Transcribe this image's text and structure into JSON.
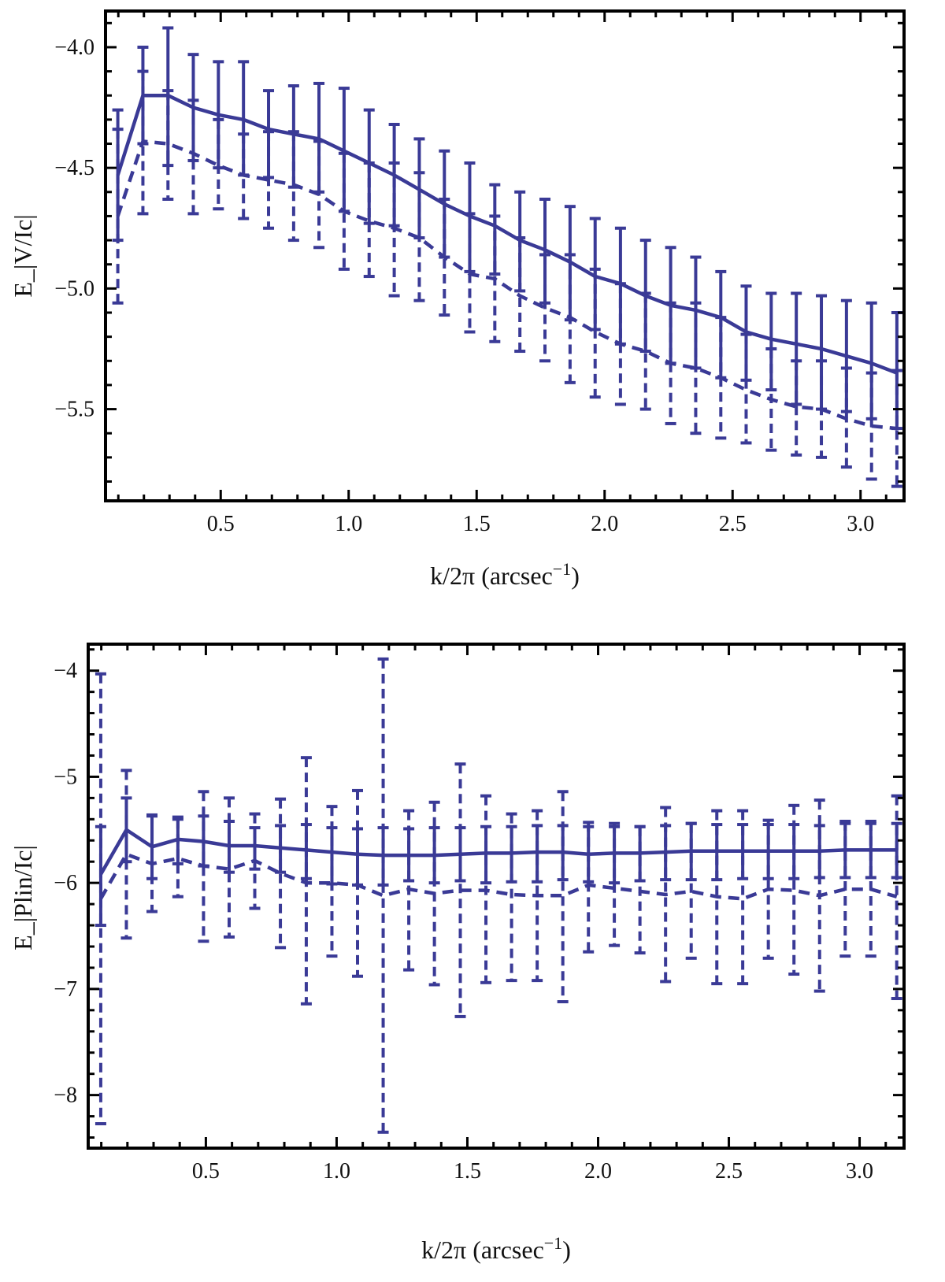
{
  "colors": {
    "series": "#3a3a96",
    "frame": "#000000",
    "background": "#ffffff"
  },
  "chart_data": [
    {
      "type": "line",
      "error_bars": true,
      "grid": false,
      "title": "",
      "xlabel": "k/2π (arcsec",
      "xlabel_sup": "−1",
      "xlabel_close": ")",
      "ylabel": "E_|V/Ic|",
      "xlim": [
        0.05,
        3.17
      ],
      "ylim": [
        -5.88,
        -3.85
      ],
      "x_ticks": [
        0.5,
        1.0,
        1.5,
        2.0,
        2.5,
        3.0
      ],
      "x_tick_labels": [
        "0.5",
        "1.0",
        "1.5",
        "2.0",
        "2.5",
        "3.0"
      ],
      "y_ticks": [
        -4.0,
        -4.5,
        -5.0,
        -5.5
      ],
      "y_tick_labels": [
        "−4.0",
        "−4.5",
        "−5.0",
        "−5.5"
      ],
      "x": [
        0.098,
        0.196,
        0.294,
        0.393,
        0.491,
        0.589,
        0.687,
        0.785,
        0.884,
        0.982,
        1.08,
        1.178,
        1.276,
        1.374,
        1.473,
        1.571,
        1.669,
        1.767,
        1.865,
        1.963,
        2.062,
        2.16,
        2.258,
        2.356,
        2.454,
        2.553,
        2.651,
        2.749,
        2.847,
        2.945,
        3.043,
        3.142
      ],
      "series": [
        {
          "style": "solid",
          "values": [
            -4.53,
            -4.2,
            -4.2,
            -4.25,
            -4.28,
            -4.3,
            -4.34,
            -4.36,
            -4.38,
            -4.43,
            -4.48,
            -4.53,
            -4.59,
            -4.65,
            -4.7,
            -4.74,
            -4.8,
            -4.84,
            -4.89,
            -4.95,
            -4.98,
            -5.03,
            -5.07,
            -5.09,
            -5.12,
            -5.18,
            -5.21,
            -5.23,
            -5.25,
            -5.28,
            -5.31,
            -5.35
          ],
          "err_low": [
            -4.8,
            -4.4,
            -4.49,
            -4.47,
            -4.5,
            -4.53,
            -4.54,
            -4.58,
            -4.6,
            -4.68,
            -4.73,
            -4.74,
            -4.79,
            -4.87,
            -4.93,
            -4.94,
            -5.01,
            -5.06,
            -5.13,
            -5.17,
            -5.23,
            -5.26,
            -5.31,
            -5.33,
            -5.37,
            -5.38,
            -5.42,
            -5.48,
            -5.5,
            -5.51,
            -5.54,
            -5.58
          ],
          "err_high": [
            -4.26,
            -4.0,
            -3.92,
            -4.03,
            -4.06,
            -4.06,
            -4.18,
            -4.16,
            -4.15,
            -4.17,
            -4.26,
            -4.32,
            -4.38,
            -4.43,
            -4.48,
            -4.57,
            -4.6,
            -4.63,
            -4.66,
            -4.71,
            -4.75,
            -4.8,
            -4.83,
            -4.87,
            -4.93,
            -4.99,
            -5.02,
            -5.02,
            -5.03,
            -5.05,
            -5.06,
            -5.1
          ]
        },
        {
          "style": "dashed",
          "values": [
            -4.7,
            -4.39,
            -4.4,
            -4.44,
            -4.49,
            -4.53,
            -4.55,
            -4.57,
            -4.61,
            -4.68,
            -4.72,
            -4.75,
            -4.79,
            -4.87,
            -4.94,
            -4.96,
            -5.03,
            -5.08,
            -5.12,
            -5.18,
            -5.23,
            -5.26,
            -5.31,
            -5.33,
            -5.37,
            -5.42,
            -5.46,
            -5.49,
            -5.5,
            -5.54,
            -5.57,
            -5.58
          ],
          "err_low": [
            -5.06,
            -4.69,
            -4.63,
            -4.69,
            -4.67,
            -4.71,
            -4.75,
            -4.8,
            -4.83,
            -4.92,
            -4.95,
            -5.03,
            -5.05,
            -5.11,
            -5.18,
            -5.22,
            -5.26,
            -5.3,
            -5.39,
            -5.45,
            -5.48,
            -5.5,
            -5.56,
            -5.6,
            -5.62,
            -5.64,
            -5.67,
            -5.69,
            -5.7,
            -5.74,
            -5.79,
            -5.82
          ],
          "err_high": [
            -4.34,
            -4.1,
            -4.18,
            -4.22,
            -4.3,
            -4.36,
            -4.35,
            -4.35,
            -4.39,
            -4.44,
            -4.48,
            -4.48,
            -4.52,
            -4.63,
            -4.69,
            -4.7,
            -4.79,
            -4.86,
            -4.86,
            -4.92,
            -4.98,
            -5.02,
            -5.06,
            -5.06,
            -5.12,
            -5.19,
            -5.25,
            -5.3,
            -5.3,
            -5.33,
            -5.35,
            -5.34
          ]
        }
      ]
    },
    {
      "type": "line",
      "error_bars": true,
      "grid": false,
      "title": "",
      "xlabel": "k/2π (arcsec",
      "xlabel_sup": "−1",
      "xlabel_close": ")",
      "ylabel": "E_|Plin/Ic|",
      "xlim": [
        0.05,
        3.17
      ],
      "ylim": [
        -8.5,
        -3.75
      ],
      "x_ticks": [
        0.5,
        1.0,
        1.5,
        2.0,
        2.5,
        3.0
      ],
      "x_tick_labels": [
        "0.5",
        "1.0",
        "1.5",
        "2.0",
        "2.5",
        "3.0"
      ],
      "y_ticks": [
        -4,
        -5,
        -6,
        -7,
        -8
      ],
      "y_tick_labels": [
        "−4",
        "−5",
        "−6",
        "−7",
        "−8"
      ],
      "x": [
        0.098,
        0.196,
        0.294,
        0.393,
        0.491,
        0.589,
        0.687,
        0.785,
        0.884,
        0.982,
        1.08,
        1.178,
        1.276,
        1.374,
        1.473,
        1.571,
        1.669,
        1.767,
        1.865,
        1.963,
        2.062,
        2.16,
        2.258,
        2.356,
        2.454,
        2.553,
        2.651,
        2.749,
        2.847,
        2.945,
        3.043,
        3.142
      ],
      "series": [
        {
          "style": "solid",
          "values": [
            -5.92,
            -5.5,
            -5.66,
            -5.59,
            -5.61,
            -5.65,
            -5.65,
            -5.67,
            -5.69,
            -5.71,
            -5.73,
            -5.74,
            -5.74,
            -5.74,
            -5.73,
            -5.72,
            -5.72,
            -5.71,
            -5.71,
            -5.73,
            -5.72,
            -5.72,
            -5.71,
            -5.7,
            -5.7,
            -5.7,
            -5.7,
            -5.7,
            -5.7,
            -5.69,
            -5.69,
            -5.69
          ],
          "err_low": [
            -6.4,
            -5.8,
            -5.96,
            -5.82,
            -5.84,
            -5.9,
            -5.87,
            -5.9,
            -5.96,
            -6.01,
            -6.02,
            -6.02,
            -5.98,
            -6.0,
            -5.98,
            -6.0,
            -5.99,
            -5.99,
            -5.97,
            -5.99,
            -6.0,
            -5.98,
            -5.97,
            -5.97,
            -5.97,
            -5.96,
            -5.96,
            -5.96,
            -5.95,
            -5.95,
            -5.95,
            -5.95
          ],
          "err_high": [
            -5.47,
            -5.2,
            -5.37,
            -5.38,
            -5.37,
            -5.42,
            -5.48,
            -5.46,
            -5.45,
            -5.48,
            -5.49,
            -5.48,
            -5.49,
            -5.48,
            -5.48,
            -5.47,
            -5.47,
            -5.46,
            -5.46,
            -5.47,
            -5.47,
            -5.47,
            -5.46,
            -5.44,
            -5.45,
            -5.45,
            -5.45,
            -5.45,
            -5.46,
            -5.44,
            -5.44,
            -5.44
          ]
        },
        {
          "style": "dashed",
          "values": [
            -6.15,
            -5.73,
            -5.82,
            -5.77,
            -5.84,
            -5.87,
            -5.79,
            -5.91,
            -6.0,
            -6.0,
            -6.02,
            -6.12,
            -6.06,
            -6.1,
            -6.07,
            -6.07,
            -6.11,
            -6.12,
            -6.12,
            -6.02,
            -6.05,
            -6.08,
            -6.11,
            -6.08,
            -6.13,
            -6.15,
            -6.06,
            -6.07,
            -6.12,
            -6.06,
            -6.06,
            -6.13
          ],
          "err_low": [
            -8.27,
            -6.52,
            -6.27,
            -6.13,
            -6.55,
            -6.51,
            -6.24,
            -6.61,
            -7.14,
            -6.69,
            -6.88,
            -8.35,
            -6.82,
            -6.96,
            -7.26,
            -6.94,
            -6.92,
            -6.92,
            -7.12,
            -6.65,
            -6.59,
            -6.66,
            -6.93,
            -6.71,
            -6.95,
            -6.95,
            -6.71,
            -6.86,
            -7.02,
            -6.69,
            -6.69,
            -7.09
          ],
          "err_high": [
            -4.03,
            -4.94,
            -5.36,
            -5.4,
            -5.14,
            -5.2,
            -5.35,
            -5.21,
            -4.82,
            -5.28,
            -5.13,
            -3.89,
            -5.32,
            -5.24,
            -4.88,
            -5.18,
            -5.35,
            -5.32,
            -5.14,
            -5.43,
            -5.44,
            -5.47,
            -5.29,
            -5.44,
            -5.32,
            -5.32,
            -5.41,
            -5.27,
            -5.22,
            -5.42,
            -5.42,
            -5.18
          ]
        }
      ]
    }
  ]
}
